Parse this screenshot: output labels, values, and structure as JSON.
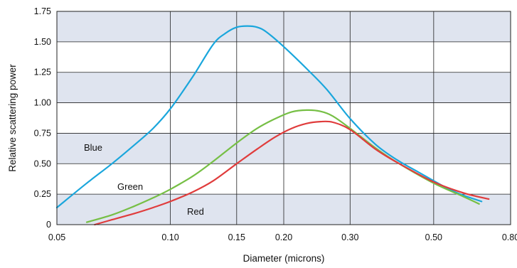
{
  "chart_data": {
    "type": "line",
    "xlabel": "Diameter (microns)",
    "ylabel": "Relative scattering power",
    "x_scale": "log",
    "xlim": [
      0.05,
      0.8
    ],
    "ylim": [
      0,
      1.75
    ],
    "x_ticks": [
      {
        "value": 0.05,
        "label": "0.05"
      },
      {
        "value": 0.1,
        "label": "0.10"
      },
      {
        "value": 0.15,
        "label": "0.15"
      },
      {
        "value": 0.2,
        "label": "0.20"
      },
      {
        "value": 0.3,
        "label": "0.30"
      },
      {
        "value": 0.5,
        "label": "0.50"
      },
      {
        "value": 0.8,
        "label": "0.80"
      }
    ],
    "y_ticks": [
      {
        "value": 0,
        "label": "0"
      },
      {
        "value": 0.25,
        "label": "0.25"
      },
      {
        "value": 0.5,
        "label": "0.50"
      },
      {
        "value": 0.75,
        "label": "0.75"
      },
      {
        "value": 1.0,
        "label": "1.00"
      },
      {
        "value": 1.25,
        "label": "1.25"
      },
      {
        "value": 1.5,
        "label": "1.50"
      },
      {
        "value": 1.75,
        "label": "1.75"
      }
    ],
    "grid": true,
    "band_colors": [
      "#dfe4ef",
      "#ffffff"
    ],
    "series": [
      {
        "name": "Blue",
        "color": "#1aa6dc",
        "x": [
          0.05,
          0.06,
          0.07,
          0.08,
          0.09,
          0.1,
          0.115,
          0.13,
          0.14,
          0.15,
          0.16,
          0.17,
          0.18,
          0.2,
          0.23,
          0.26,
          0.3,
          0.35,
          0.4,
          0.45,
          0.5,
          0.55,
          0.6,
          0.67
        ],
        "y": [
          0.14,
          0.34,
          0.5,
          0.65,
          0.79,
          0.95,
          1.22,
          1.48,
          1.57,
          1.62,
          1.63,
          1.62,
          1.58,
          1.46,
          1.28,
          1.11,
          0.87,
          0.66,
          0.53,
          0.44,
          0.36,
          0.29,
          0.24,
          0.19
        ]
      },
      {
        "name": "Green",
        "color": "#76bf45",
        "x": [
          0.06,
          0.07,
          0.08,
          0.09,
          0.1,
          0.115,
          0.13,
          0.15,
          0.17,
          0.19,
          0.21,
          0.23,
          0.25,
          0.27,
          0.3,
          0.35,
          0.4,
          0.5,
          0.6,
          0.66
        ],
        "y": [
          0.02,
          0.08,
          0.15,
          0.22,
          0.29,
          0.4,
          0.52,
          0.67,
          0.79,
          0.87,
          0.925,
          0.94,
          0.93,
          0.89,
          0.79,
          0.63,
          0.51,
          0.34,
          0.23,
          0.17
        ]
      },
      {
        "name": "Red",
        "color": "#e03c3c",
        "x": [
          0.063,
          0.07,
          0.08,
          0.09,
          0.1,
          0.115,
          0.13,
          0.15,
          0.17,
          0.19,
          0.21,
          0.23,
          0.25,
          0.27,
          0.3,
          0.35,
          0.4,
          0.5,
          0.6,
          0.7
        ],
        "y": [
          0.0,
          0.04,
          0.09,
          0.14,
          0.19,
          0.27,
          0.36,
          0.5,
          0.62,
          0.72,
          0.79,
          0.83,
          0.845,
          0.84,
          0.78,
          0.62,
          0.51,
          0.35,
          0.26,
          0.21
        ]
      }
    ]
  }
}
